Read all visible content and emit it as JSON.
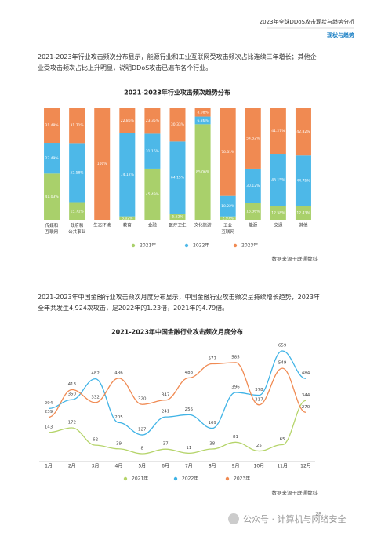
{
  "header": {
    "title": "2023年全球DDoS攻击现状与趋势分析",
    "section": "现状与趋势"
  },
  "paragraphs": [
    "2021-2023年行业攻击频次分布显示，能源行业和工业互联网受攻击频次占比连续三年增长；其他企业受攻击频次占比上升明显，说明DDoS攻击已遍布各个行业。",
    "2021-2023年中国金融行业攻击频次月度分布显示，中国金融行业攻击频次呈持续增长趋势，2023年全年共发生4,924次攻击，是2022年的1.23倍，2021年的4.79倍。"
  ],
  "sources": [
    "数据来源于联通数科",
    "数据来源于联通数科"
  ],
  "page_number": "28",
  "watermark": "公众号 · 计算机与网络安全",
  "chart_data": [
    {
      "type": "stacked_bar",
      "title": "2021-2023年行业攻击频次趋势分布",
      "categories": [
        "传媒和互联网",
        "政府和公共事业",
        "生态环境",
        "教育",
        "金融",
        "医疗卫生",
        "文化旅游",
        "工业互联网",
        "能源",
        "交通",
        "其他"
      ],
      "series": [
        {
          "name": "2021年",
          "color": "#a9d06b",
          "values": [
            41.03,
            15.71,
            0,
            3.02,
            45.49,
            5.52,
            85.06,
            2.97,
            15.36,
            12.58,
            12.43
          ],
          "value_labels": [
            "41.03%",
            "15.71%",
            null,
            "3.02%",
            "45.49%",
            "5.52%",
            "85.06%",
            "2.97%",
            "15.36%",
            "12.58%",
            "12.43%"
          ]
        },
        {
          "name": "2022年",
          "color": "#4db8e8",
          "values": [
            27.49,
            52.58,
            0,
            74.12,
            31.16,
            64.15,
            6.86,
            18.22,
            30.12,
            46.15,
            44.75
          ],
          "value_labels": [
            "27.49%",
            "52.58%",
            null,
            "74.12%",
            "31.16%",
            "64.15%",
            "6.86%",
            "18.22%",
            "30.12%",
            "46.15%",
            "44.75%"
          ]
        },
        {
          "name": "2023年",
          "color": "#f08a52",
          "values": [
            31.48,
            31.71,
            100,
            22.86,
            23.35,
            30.33,
            8.08,
            78.81,
            54.52,
            41.27,
            42.82
          ],
          "value_labels": [
            "31.48%",
            "31.71%",
            "100%",
            "22.86%",
            "23.35%",
            "30.33%",
            "8.08%",
            "78.81%",
            "54.52%",
            "41.27%",
            "42.82%"
          ]
        }
      ]
    },
    {
      "type": "line",
      "title": "2021-2023年中国金融行业攻击频次月度分布",
      "categories": [
        "1月",
        "2月",
        "3月",
        "4月",
        "5月",
        "6月",
        "7月",
        "8月",
        "9月",
        "10月",
        "11月",
        "12月"
      ],
      "series": [
        {
          "name": "2021年",
          "color": "#b5d46a",
          "values": [
            143,
            172,
            62,
            39,
            8,
            37,
            11,
            38,
            81,
            25,
            65,
            344
          ]
        },
        {
          "name": "2022年",
          "color": "#3fb3e6",
          "values": [
            294,
            350,
            482,
            205,
            127,
            241,
            255,
            169,
            396,
            378,
            659,
            484
          ]
        },
        {
          "name": "2023年",
          "color": "#f08a52",
          "values": [
            239,
            413,
            332,
            486,
            320,
            347,
            488,
            577,
            585,
            317,
            549,
            270
          ]
        }
      ]
    }
  ]
}
